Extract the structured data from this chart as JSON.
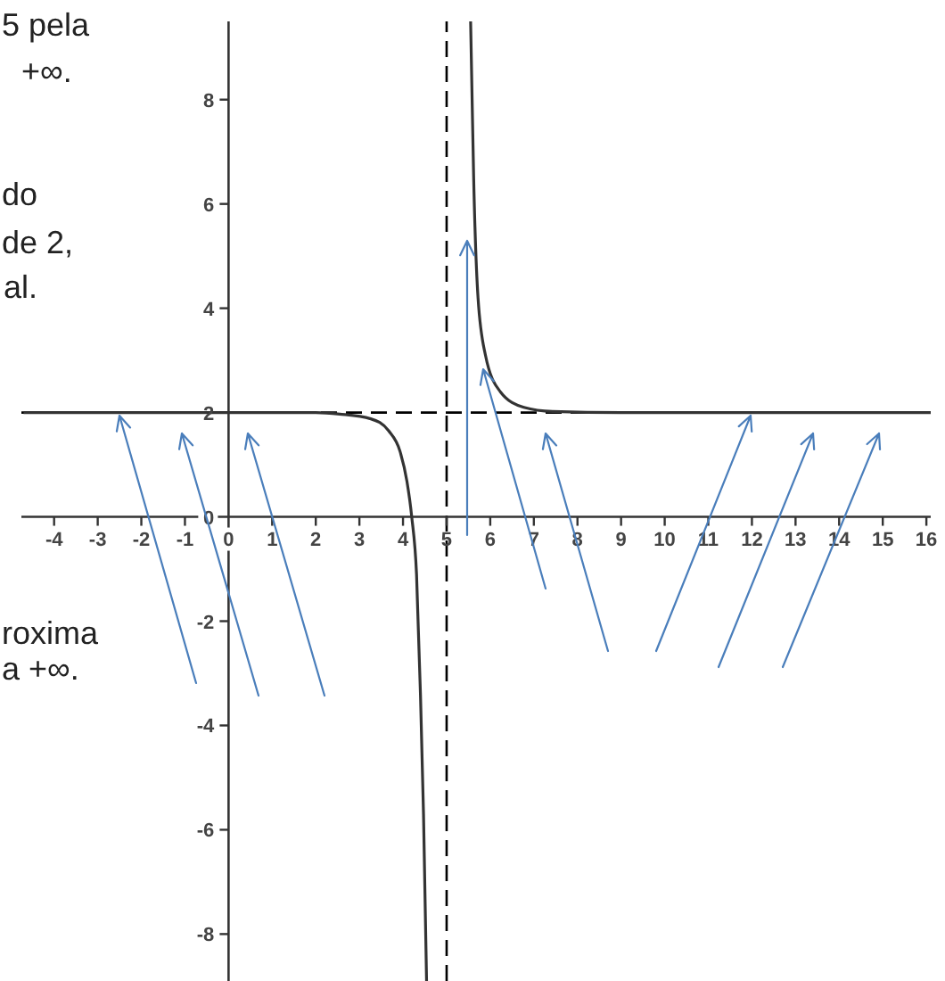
{
  "chart_data": {
    "type": "line",
    "x": [
      -4.7,
      -2,
      0,
      1,
      2,
      2.55,
      3.26,
      3.67,
      3.93,
      4.09,
      4.2,
      4.31,
      4.4,
      4.47,
      4.54,
      5,
      5.55,
      5.58,
      5.62,
      5.72,
      5.89,
      6.23,
      6.77,
      7.43,
      9,
      12,
      16.1
    ],
    "series": [
      {
        "color": "#333333",
        "values": [
          2,
          2,
          2,
          2,
          2,
          1.97,
          1.88,
          1.65,
          1.26,
          0.68,
          0,
          -1.1,
          -3.4,
          -5.7,
          -8.9,
          null,
          9.5,
          8.2,
          6.5,
          4.2,
          3.1,
          2.4,
          2.1,
          2.02,
          2,
          2,
          2
        ]
      }
    ],
    "xlim": [
      -4.75,
      16.1
    ],
    "ylim": [
      -8.9,
      9.5
    ],
    "xticks": [
      -4,
      -3,
      -2,
      -1,
      0,
      1,
      2,
      3,
      4,
      5,
      6,
      7,
      8,
      9,
      10,
      11,
      12,
      13,
      14,
      15,
      16
    ],
    "yticks": [
      -8,
      -6,
      -4,
      -2,
      0,
      2,
      4,
      6,
      8
    ],
    "ref_lines": [
      {
        "axis": "x",
        "value": 5,
        "color": "#000000",
        "line_style": "dashed"
      },
      {
        "axis": "y",
        "value": 2,
        "color": "#000000",
        "line_style": "dashed"
      }
    ],
    "marker": "none",
    "line_style": "solid",
    "annotations": [
      "5 pela",
      "+∞.",
      "do",
      "de 2,",
      "al.",
      "roxima",
      "a +∞."
    ]
  }
}
